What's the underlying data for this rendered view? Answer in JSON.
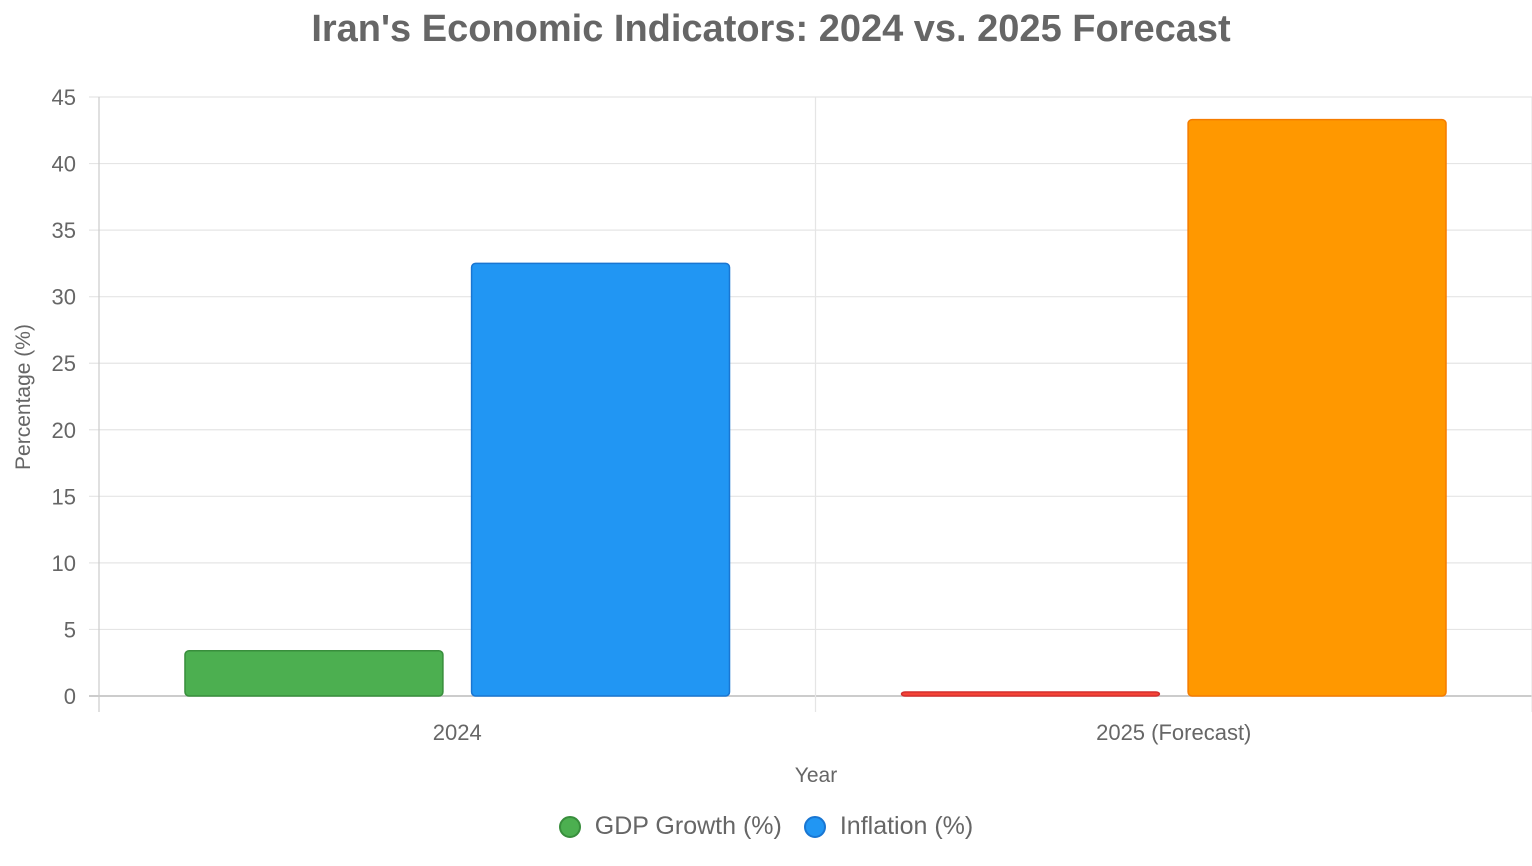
{
  "chart_data": {
    "type": "bar",
    "title": "Iran's Economic Indicators: 2024 vs. 2025 Forecast",
    "xlabel": "Year",
    "ylabel": "Percentage (%)",
    "ylim": [
      0,
      45
    ],
    "yticks": [
      0,
      5,
      10,
      15,
      20,
      25,
      30,
      35,
      40,
      45
    ],
    "categories": [
      "2024",
      "2025 (Forecast)"
    ],
    "series": [
      {
        "name": "GDP Growth (%)",
        "values": [
          3.4,
          0.3
        ],
        "colors": [
          "#4CAF50",
          "#F44336"
        ],
        "border_colors": [
          "#388E3C",
          "#D32F2F"
        ]
      },
      {
        "name": "Inflation (%)",
        "values": [
          32.5,
          43.3
        ],
        "colors": [
          "#2196F3",
          "#FF9800"
        ],
        "border_colors": [
          "#1976D2",
          "#F57C00"
        ]
      }
    ],
    "grid": true,
    "legend_position": "bottom"
  }
}
